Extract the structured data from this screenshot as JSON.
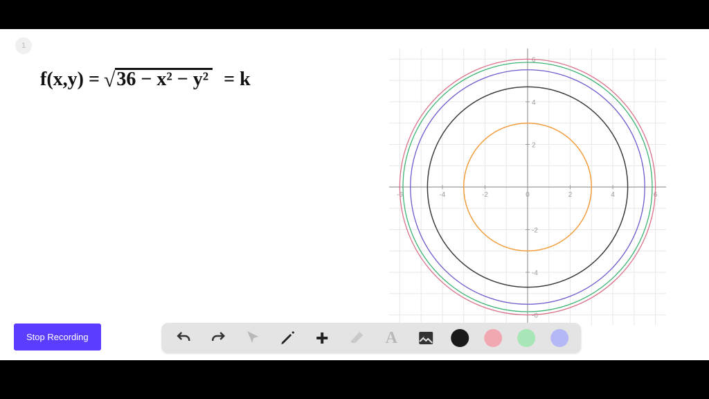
{
  "page_number": "1",
  "equation": {
    "lhs": "f(x,y) =",
    "radicand": "36 − x² − y²",
    "rhs": "= k"
  },
  "chart": {
    "type": "contour-circles",
    "xlim": [
      -6.5,
      6.5
    ],
    "ylim": [
      -6.5,
      6.5
    ],
    "ticks": [
      -6,
      -4,
      -2,
      0,
      2,
      4,
      6
    ],
    "grid_minor_step": 1,
    "background_color": "#ffffff",
    "grid_color": "#e8e8e8",
    "axis_color": "#9a9a9a",
    "tick_fontsize": 10,
    "circles": [
      {
        "r": 3,
        "color": "#f39c3b",
        "width": 1.5
      },
      {
        "r": 4.7,
        "color": "#3a3a3a",
        "width": 1.5
      },
      {
        "r": 5.5,
        "color": "#6a5acd",
        "width": 1.3
      },
      {
        "r": 5.85,
        "color": "#3cb371",
        "width": 1.3
      },
      {
        "r": 6.0,
        "color": "#d97087",
        "width": 1.3
      }
    ]
  },
  "stop_button_label": "Stop Recording",
  "toolbar": {
    "undo": "undo",
    "redo": "redo",
    "pointer": "pointer",
    "pen": "pen",
    "plus": "plus",
    "eraser": "eraser",
    "text": "text",
    "image": "image",
    "swatches": [
      "#1a1a1a",
      "#f2a8b0",
      "#a8e6b8",
      "#b4b8f5"
    ]
  }
}
